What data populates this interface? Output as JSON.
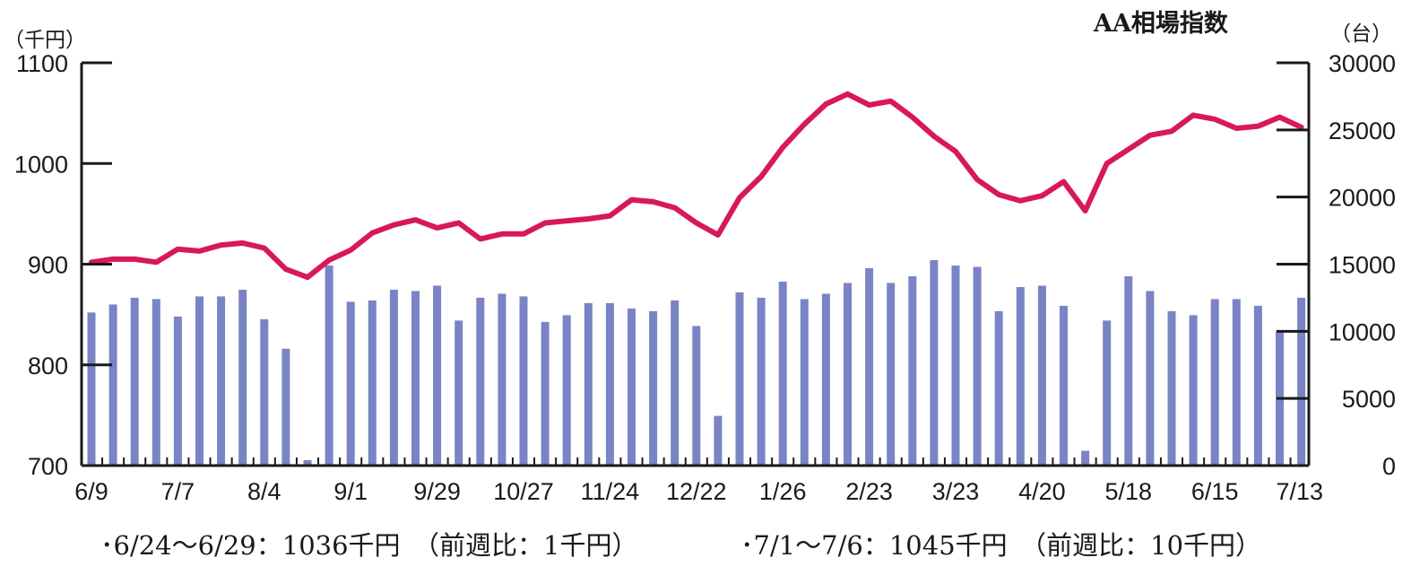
{
  "chart_data": {
    "type": "bar+line",
    "title": "AA相場指数",
    "left_axis": {
      "unit": "（千円）",
      "ticks": [
        "700",
        "800",
        "900",
        "1000",
        "1100"
      ],
      "range": [
        700,
        1100
      ]
    },
    "right_axis": {
      "unit": "（台）",
      "ticks": [
        "0",
        "5000",
        "10000",
        "15000",
        "20000",
        "25000",
        "30000"
      ],
      "range": [
        0,
        30000
      ]
    },
    "x_tick_labels": [
      "6/9",
      "7/7",
      "8/4",
      "9/1",
      "9/29",
      "10/27",
      "11/24",
      "12/22",
      "1/26",
      "2/23",
      "3/23",
      "4/20",
      "5/18",
      "6/15",
      "7/13"
    ],
    "x_tick_every": 4,
    "bar_color": "#7a84c4",
    "line_color": "#d8185a",
    "series": [
      {
        "axis": "left",
        "style": "line",
        "values": [
          902,
          905,
          905,
          902,
          915,
          913,
          919,
          921,
          916,
          895,
          887,
          904,
          914,
          931,
          939,
          944,
          936,
          941,
          925,
          930,
          930,
          941,
          943,
          945,
          948,
          964,
          962,
          956,
          941,
          929,
          966,
          987,
          1016,
          1039,
          1059,
          1069,
          1058,
          1062,
          1046,
          1027,
          1012,
          984,
          969,
          963,
          968,
          982,
          953,
          1000,
          1014,
          1028,
          1032,
          1048,
          1044,
          1035,
          1037,
          1046,
          1036
        ]
      },
      {
        "axis": "right",
        "style": "bar",
        "values": [
          11400,
          12000,
          12500,
          12400,
          11100,
          12600,
          12600,
          13100,
          10900,
          8700,
          400,
          14900,
          12200,
          12300,
          13100,
          13000,
          13400,
          10800,
          12500,
          12800,
          12600,
          10700,
          11200,
          12100,
          12100,
          11700,
          11500,
          12300,
          10400,
          3700,
          12900,
          12500,
          13700,
          12400,
          12800,
          13600,
          14700,
          13600,
          14100,
          15300,
          14900,
          14800,
          11500,
          13300,
          13400,
          11900,
          1100,
          10800,
          14100,
          13000,
          11500,
          11200,
          12400,
          12400,
          11900,
          10000,
          12500
        ]
      }
    ]
  },
  "footer": {
    "left": "･6/24～6/29：1036千円　（前週比：1千円）",
    "right": "･7/1～7/6：1045千円　（前週比：10千円）"
  }
}
